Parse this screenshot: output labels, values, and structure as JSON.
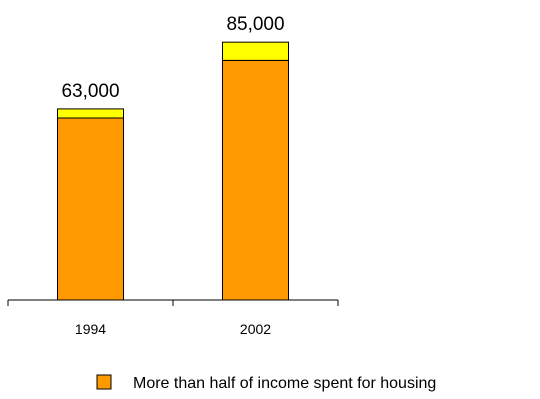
{
  "chart_data": {
    "type": "bar",
    "stacked": true,
    "categories": [
      "1994",
      "2002"
    ],
    "totals": [
      "63,000",
      "85,000"
    ],
    "series": [
      {
        "name": "More than half of income spent for housing",
        "values": [
          60000,
          79000
        ],
        "color": "#FF9900"
      },
      {
        "values": [
          3000,
          6000
        ],
        "color": "#FFFF00"
      }
    ],
    "title": "",
    "xlabel": "",
    "ylabel": "",
    "ylim": [
      0,
      90000
    ],
    "grid": false,
    "legend_position": "bottom-right"
  }
}
